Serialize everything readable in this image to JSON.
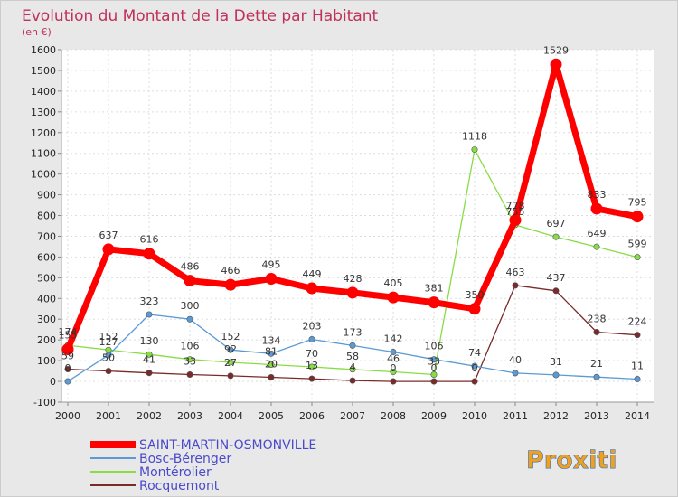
{
  "title": "Evolution du Montant de la Dette par Habitant",
  "subtitle": "(en €)",
  "logo_text": "Proxiti",
  "chart_data": {
    "type": "line",
    "title": "Evolution du Montant de la Dette par Habitant",
    "subtitle": "(en €)",
    "xlabel": "",
    "ylabel": "",
    "x": [
      2000,
      2001,
      2002,
      2003,
      2004,
      2005,
      2006,
      2007,
      2008,
      2009,
      2010,
      2011,
      2012,
      2013,
      2014
    ],
    "ylim": [
      -100,
      1600
    ],
    "yticks": [
      -100,
      0,
      100,
      200,
      300,
      400,
      500,
      600,
      700,
      800,
      900,
      1000,
      1100,
      1200,
      1300,
      1400,
      1500,
      1600
    ],
    "grid": true,
    "legend": "bottom-left",
    "series": [
      {
        "name": "SAINT-MARTIN-OSMONVILLE",
        "color": "#ff0000",
        "values": [
          155,
          637,
          616,
          486,
          466,
          495,
          449,
          428,
          405,
          381,
          350,
          778,
          1529,
          833,
          795
        ],
        "labels": [
          "155",
          "637",
          "616",
          "486",
          "466",
          "495",
          "449",
          "428",
          "405",
          "381",
          "350",
          "778",
          "1529",
          "833",
          "795"
        ]
      },
      {
        "name": "Bosc-Bérenger",
        "color": "#5a9bd5",
        "values": [
          0,
          127,
          323,
          300,
          152,
          134,
          203,
          173,
          142,
          106,
          74,
          40,
          31,
          21,
          11
        ],
        "labels": [
          "0",
          "127",
          "323",
          "300",
          "152",
          "134",
          "203",
          "173",
          "142",
          "106",
          "74",
          "40",
          "31",
          "21",
          "11"
        ]
      },
      {
        "name": "Montérolier",
        "color": "#88dd44",
        "values": [
          174,
          152,
          130,
          106,
          92,
          81,
          70,
          58,
          46,
          33,
          1118,
          755,
          697,
          649,
          599
        ],
        "labels": [
          "174",
          "152",
          "130",
          "106",
          "92",
          "81",
          "70",
          "58",
          "46",
          "33",
          "1118",
          "755",
          "697",
          "649",
          "599"
        ]
      },
      {
        "name": "Rocquemont",
        "color": "#7a2a2a",
        "values": [
          59,
          50,
          41,
          33,
          27,
          20,
          13,
          4,
          0,
          0,
          0,
          463,
          437,
          238,
          224
        ],
        "labels": [
          "59",
          "50",
          "41",
          "33",
          "27",
          "20",
          "13",
          "4",
          "0",
          "0",
          "0",
          "463",
          "437",
          "238",
          "224"
        ]
      }
    ]
  }
}
